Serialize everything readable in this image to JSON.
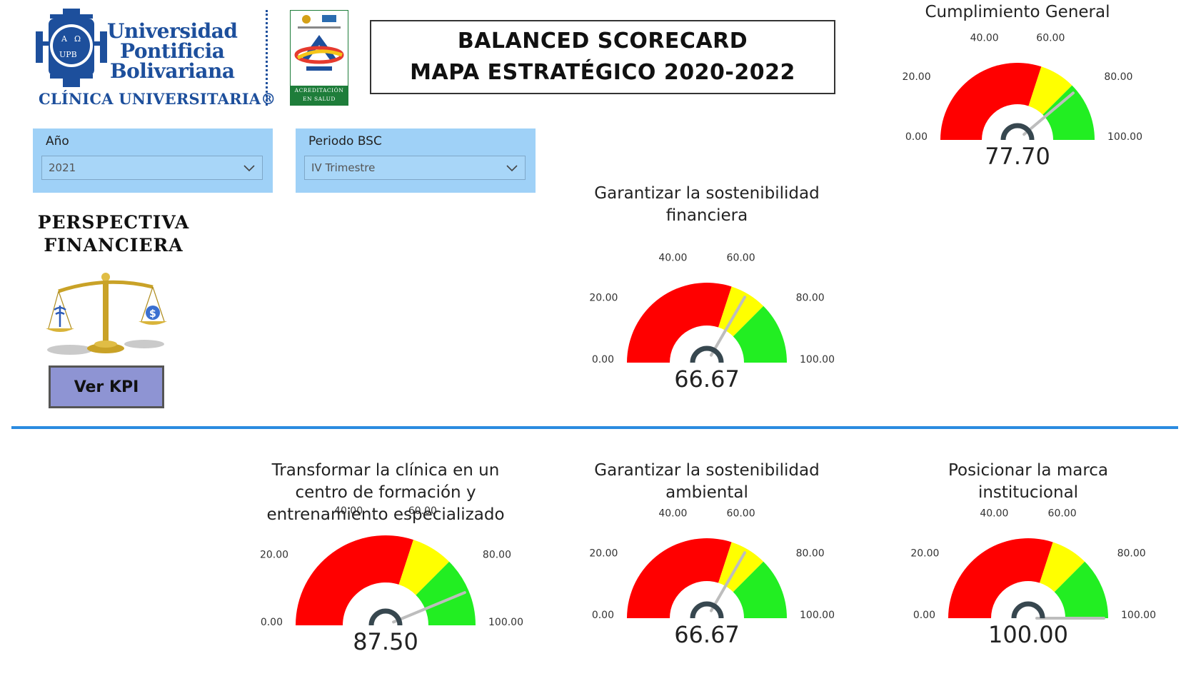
{
  "header": {
    "logo": {
      "name_lines": [
        "Universidad",
        "Pontificia",
        "Bolivariana"
      ],
      "subtitle": "CLÍNICA UNIVERSITARIA®",
      "accreditation_caption": [
        "ACREDITACIÓN",
        "EN SALUD"
      ]
    },
    "title_lines": [
      "BALANCED SCORECARD",
      "MAPA ESTRATÉGICO 2020-2022"
    ]
  },
  "filters": [
    {
      "label": "Año",
      "value": "2021"
    },
    {
      "label": "Periodo BSC",
      "value": "IV Trimestre"
    }
  ],
  "perspective": {
    "title_lines": [
      "PERSPECTIVA",
      "FINANCIERA"
    ],
    "button_label": "Ver KPI"
  },
  "gauge_scale": {
    "ticks": [
      "0.00",
      "20.00",
      "40.00",
      "60.00",
      "80.00",
      "100.00"
    ],
    "tick_values": [
      0,
      20,
      40,
      60,
      80,
      100
    ],
    "bands": [
      {
        "from": 0,
        "to": 60,
        "color": "#ff0000"
      },
      {
        "from": 60,
        "to": 75,
        "color": "#ffff00"
      },
      {
        "from": 75,
        "to": 100,
        "color": "#22ee22"
      }
    ],
    "needle_color": "#bdbdbd",
    "hub_color": "#37474f"
  },
  "gauges": [
    {
      "id": "general",
      "title_lines": [
        "Cumplimiento General"
      ],
      "value": 77.7,
      "value_text": "77.70"
    },
    {
      "id": "sostenibilidad-financiera",
      "title_lines": [
        "Garantizar la sostenibilidad",
        "financiera"
      ],
      "value": 66.67,
      "value_text": "66.67"
    },
    {
      "id": "formacion",
      "title_lines": [
        "Transformar la clínica en un",
        "centro de formación y",
        "entrenamiento especializado"
      ],
      "value": 87.5,
      "value_text": "87.50"
    },
    {
      "id": "sostenibilidad-ambiental",
      "title_lines": [
        "Garantizar la sostenibilidad",
        "ambiental"
      ],
      "value": 66.67,
      "value_text": "66.67"
    },
    {
      "id": "marca",
      "title_lines": [
        "Posicionar la marca",
        "institucional"
      ],
      "value": 100,
      "value_text": "100.00"
    }
  ]
}
